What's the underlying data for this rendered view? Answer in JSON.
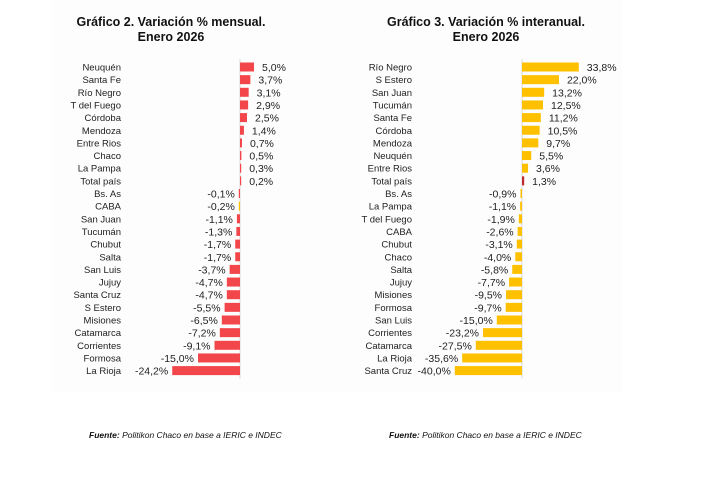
{
  "sources": {
    "left": {
      "prefix": "Fuente:",
      "text": " Politikon Chaco en base a IERIC e INDEC"
    },
    "right": {
      "prefix": "Fuente:",
      "text": " Politikon Chaco en base a IERIC e INDEC"
    }
  },
  "colors": {
    "red": "#f2464a",
    "yellow": "#ffc000",
    "total_red": "#c0282c"
  },
  "chart_data": [
    {
      "type": "bar",
      "orientation": "horizontal",
      "title_line1": "Gráfico 2. Variación % mensual.",
      "title_line2": "Enero 2026",
      "xlabel": "",
      "ylabel": "",
      "grid": false,
      "default_color": "#f2464a",
      "categories": [
        "Neuquén",
        "Santa Fe",
        "Río Negro",
        "T del Fuego",
        "Córdoba",
        "Mendoza",
        "Entre Rios",
        "Chaco",
        "La Pampa",
        "Total país",
        "Bs. As",
        "CABA",
        "San Juan",
        "Tucumán",
        "Chubut",
        "Salta",
        "San Luis",
        "Jujuy",
        "Santa Cruz",
        "S Estero",
        "Misiones",
        "Catamarca",
        "Corrientes",
        "Formosa",
        "La Rioja"
      ],
      "values": [
        5.0,
        3.7,
        3.1,
        2.9,
        2.5,
        1.4,
        0.7,
        0.5,
        0.3,
        0.2,
        -0.1,
        -0.2,
        -1.1,
        -1.3,
        -1.7,
        -1.7,
        -3.7,
        -4.7,
        -4.7,
        -5.5,
        -6.5,
        -7.2,
        -9.1,
        -15.0,
        -24.2
      ],
      "labels": [
        "5,0%",
        "3,7%",
        "3,1%",
        "2,9%",
        "2,5%",
        "1,4%",
        "0,7%",
        "0,5%",
        "0,3%",
        "0,2%",
        "-0,1%",
        "-0,2%",
        "-1,1%",
        "-1,3%",
        "-1,7%",
        "-1,7%",
        "-3,7%",
        "-4,7%",
        "-4,7%",
        "-5,5%",
        "-6,5%",
        "-7,2%",
        "-9,1%",
        "-15,0%",
        "-24,2%"
      ],
      "bar_colors": {
        "CABA": "#ffc000"
      }
    },
    {
      "type": "bar",
      "orientation": "horizontal",
      "title_line1": "Gráfico 3. Variación % interanual.",
      "title_line2": "Enero 2026",
      "xlabel": "",
      "ylabel": "",
      "grid": false,
      "default_color": "#ffc000",
      "categories": [
        "Río Negro",
        "S Estero",
        "San Juan",
        "Tucumán",
        "Santa Fe",
        "Córdoba",
        "Mendoza",
        "Neuquén",
        "Entre Rios",
        "Total país",
        "Bs. As",
        "La Pampa",
        "T del Fuego",
        "CABA",
        "Chubut",
        "Chaco",
        "Salta",
        "Jujuy",
        "Misiones",
        "Formosa",
        "San Luis",
        "Corrientes",
        "Catamarca",
        "La Rioja",
        "Santa Cruz"
      ],
      "values": [
        33.8,
        22.0,
        13.2,
        12.5,
        11.2,
        10.5,
        9.7,
        5.5,
        3.6,
        1.3,
        -0.9,
        -1.1,
        -1.9,
        -2.6,
        -3.1,
        -4.0,
        -5.8,
        -7.7,
        -9.5,
        -9.7,
        -15.0,
        -23.2,
        -27.5,
        -35.6,
        -40.0
      ],
      "labels": [
        "33,8%",
        "22,0%",
        "13,2%",
        "12,5%",
        "11,2%",
        "10,5%",
        "9,7%",
        "5,5%",
        "3,6%",
        "1,3%",
        "-0,9%",
        "-1,1%",
        "-1,9%",
        "-2,6%",
        "-3,1%",
        "-4,0%",
        "-5,8%",
        "-7,7%",
        "-9,5%",
        "-9,7%",
        "-15,0%",
        "-23,2%",
        "-27,5%",
        "-35,6%",
        "-40,0%"
      ],
      "bar_colors": {
        "Total país": "#c0282c"
      }
    }
  ]
}
